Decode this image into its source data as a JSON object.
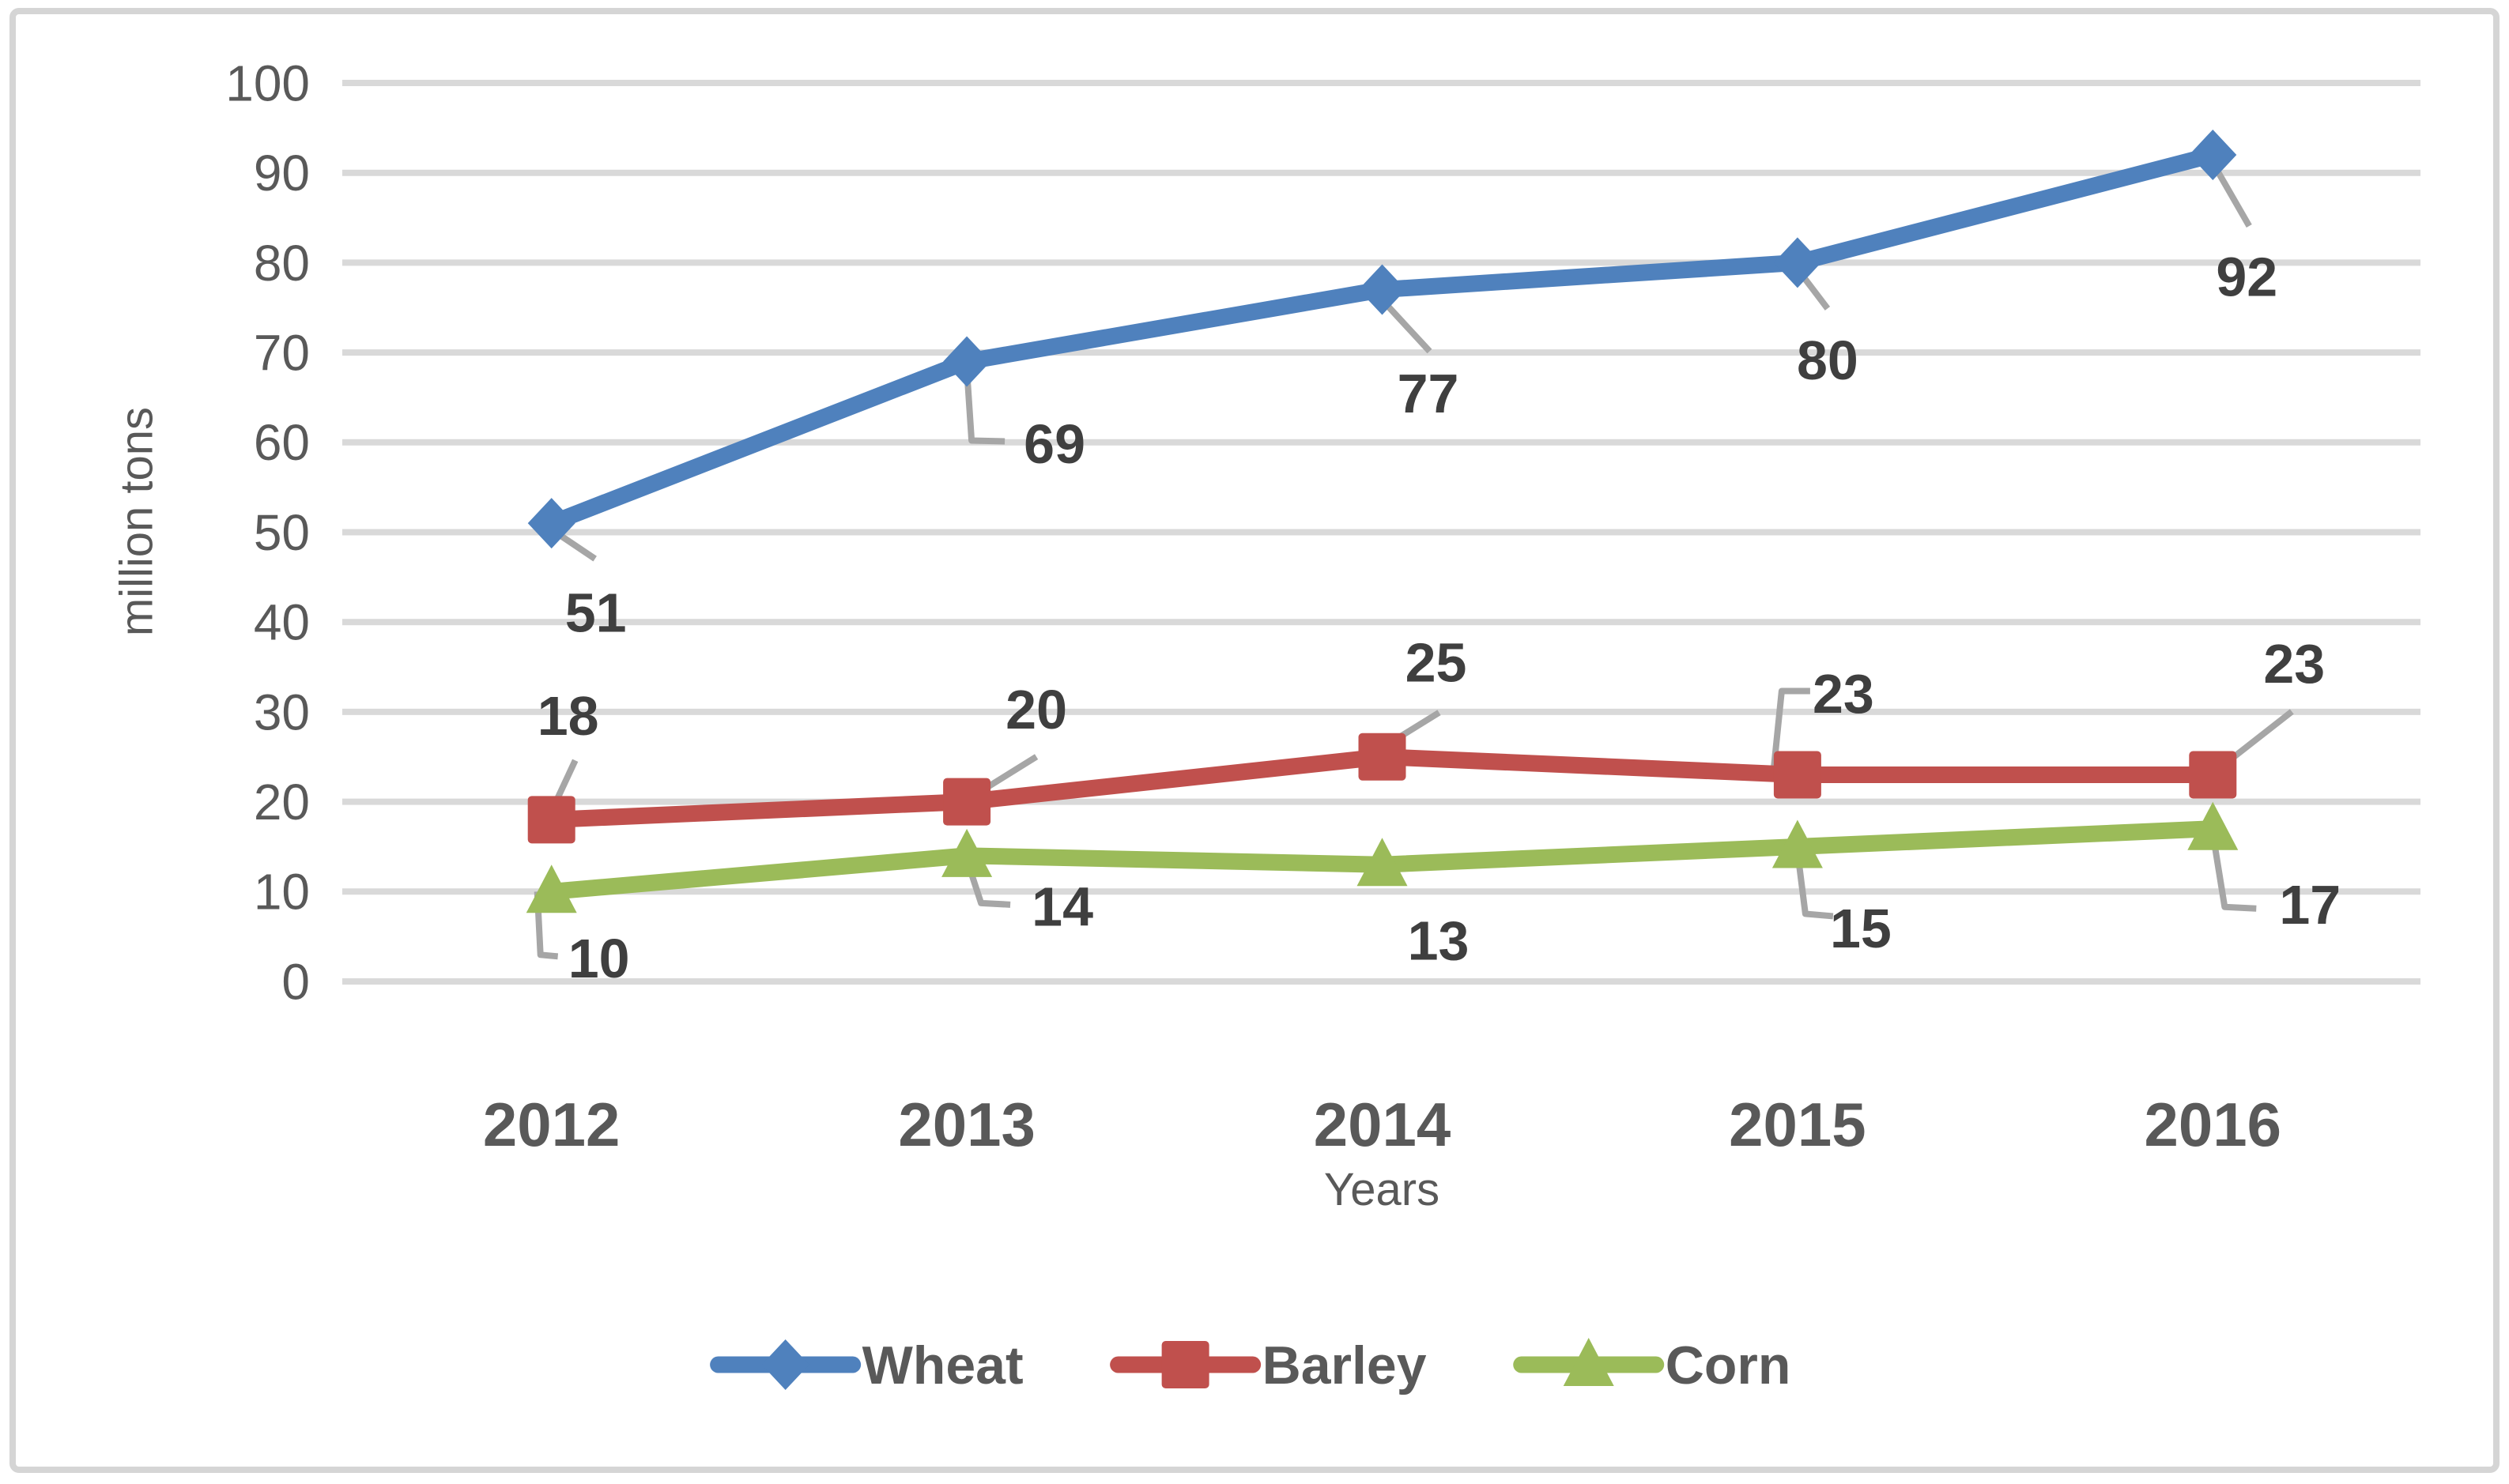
{
  "chart_data": {
    "type": "line",
    "title": "",
    "categories": [
      "2012",
      "2013",
      "2014",
      "2015",
      "2016"
    ],
    "series": [
      {
        "name": "Wheat",
        "color": "#4F81BD",
        "marker": "diamond",
        "values": [
          51,
          69,
          77,
          80,
          92
        ]
      },
      {
        "name": "Barley",
        "color": "#C0504D",
        "marker": "square",
        "values": [
          18,
          20,
          25,
          23,
          23
        ]
      },
      {
        "name": "Corn",
        "color": "#9BBB59",
        "marker": "triangle",
        "values": [
          10,
          14,
          13,
          15,
          17
        ]
      }
    ],
    "xlabel": "Years",
    "ylabel": "million tons",
    "ylim": [
      0,
      100
    ],
    "ytick_step": 10,
    "yticks": [
      0,
      10,
      20,
      30,
      40,
      50,
      60,
      70,
      80,
      90,
      100
    ],
    "grid": "horizontal",
    "data_labels_shown": true,
    "legend_position": "bottom",
    "palette": {
      "gridline": "#D9D9D9",
      "axis_text": "#595959",
      "data_label_text": "#3F3F3F",
      "leader_line": "#A6A6A6",
      "frame_border": "#D5D5D5",
      "background": "#FFFFFF"
    }
  }
}
